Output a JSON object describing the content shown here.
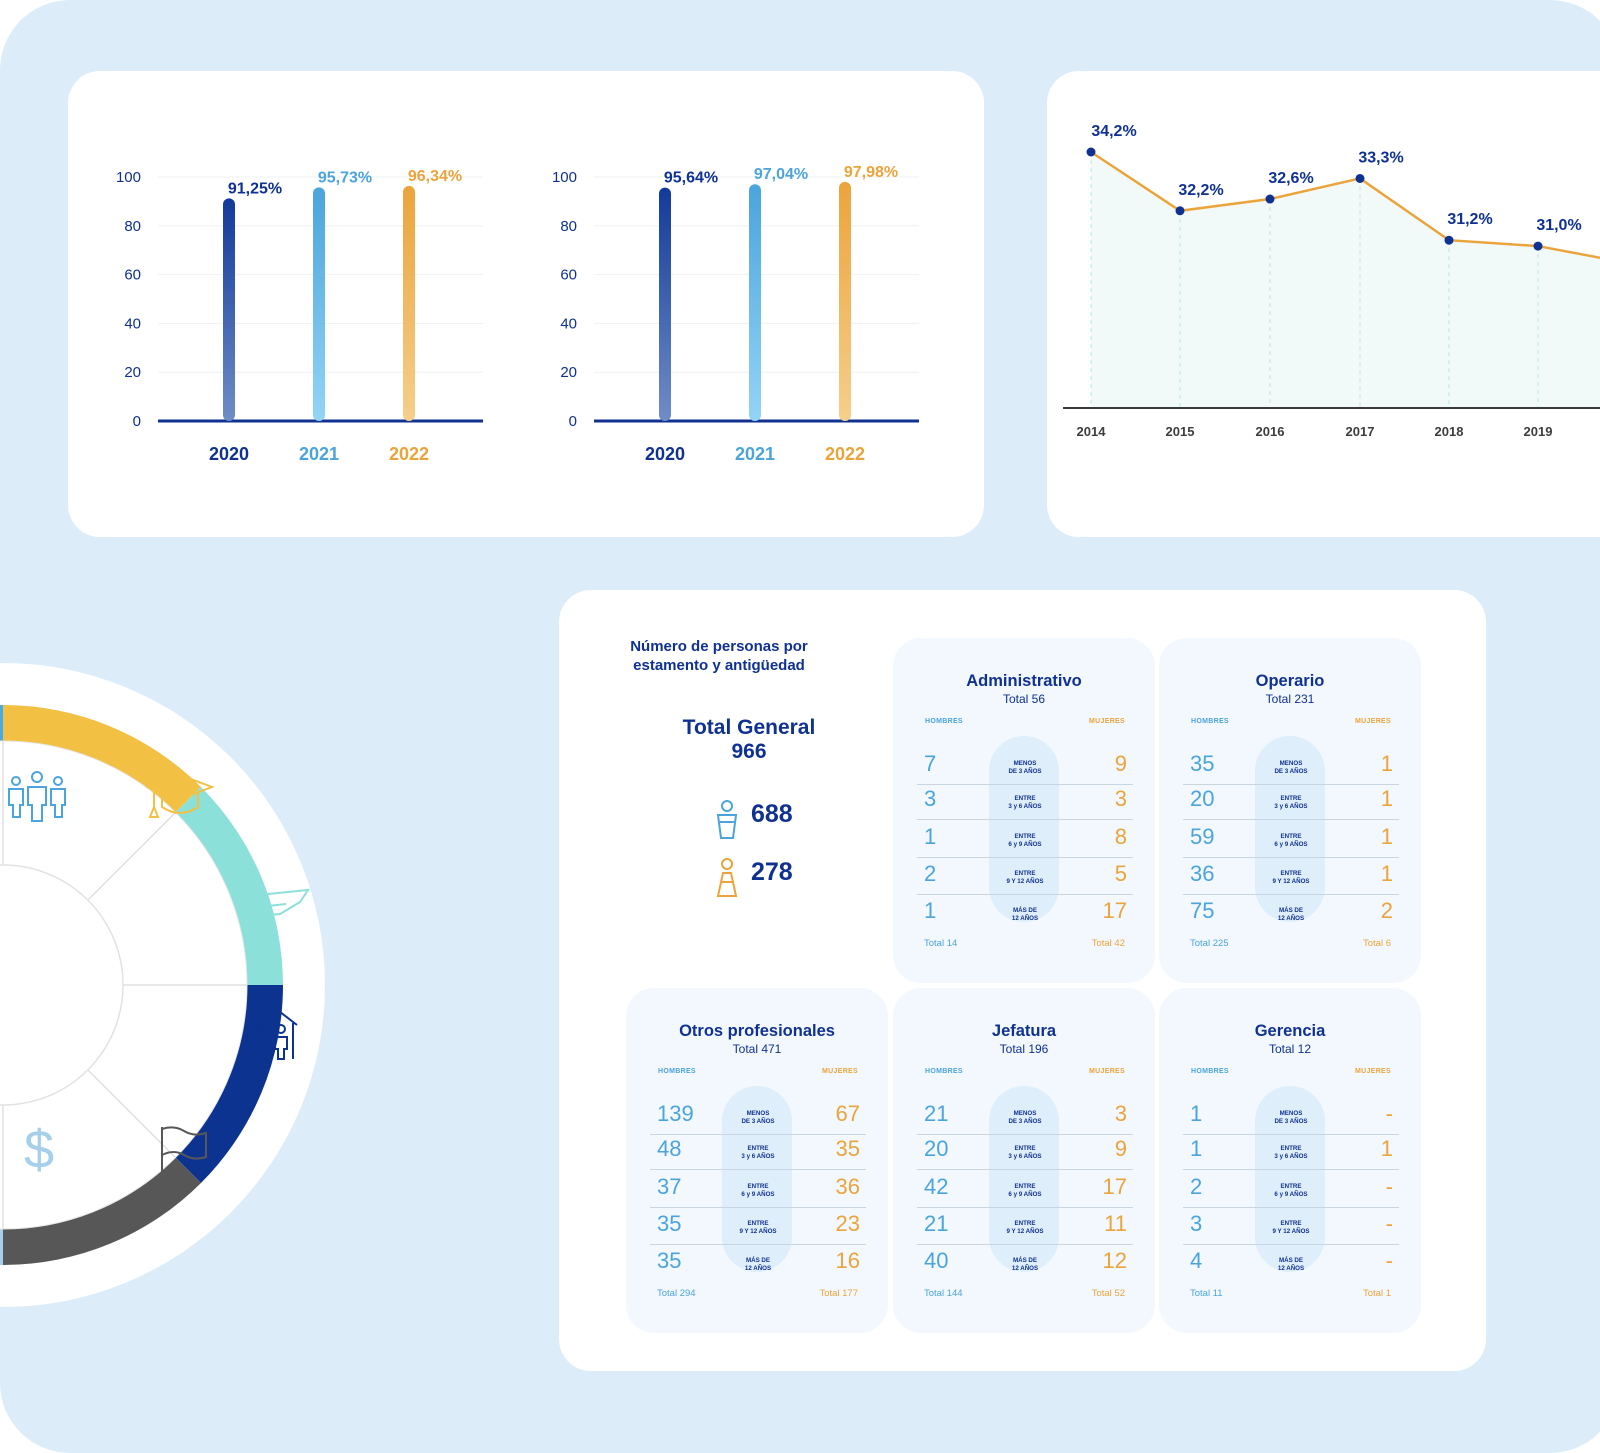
{
  "colors": {
    "dark_blue": "#0f3191",
    "light_blue": "#4ba4dc",
    "orange": "#eba43c",
    "teal": "#8be0da",
    "gray_dark": "#575757",
    "pale_blue": "#a6cfeb"
  },
  "chart_data": [
    {
      "type": "bar",
      "categories": [
        "2020",
        "2021",
        "2022"
      ],
      "values": [
        91.25,
        95.73,
        96.34
      ],
      "data_labels": [
        "91,25%",
        "95,73%",
        "96,34%"
      ],
      "yticks": [
        "100",
        "80",
        "60",
        "40",
        "20",
        "0"
      ],
      "ylim": [
        0,
        100
      ],
      "grid": true
    },
    {
      "type": "bar",
      "categories": [
        "2020",
        "2021",
        "2022"
      ],
      "values": [
        95.64,
        97.04,
        97.98
      ],
      "data_labels": [
        "95,64%",
        "97,04%",
        "97,98%"
      ],
      "yticks": [
        "100",
        "80",
        "60",
        "40",
        "20",
        "0"
      ],
      "ylim": [
        0,
        100
      ],
      "grid": true
    },
    {
      "type": "line",
      "categories": [
        "2014",
        "2015",
        "2016",
        "2017",
        "2018",
        "2019"
      ],
      "values": [
        34.2,
        32.2,
        32.6,
        33.3,
        31.2,
        31.0
      ],
      "data_labels": [
        "34,2%",
        "32,2%",
        "32,6%",
        "33,3%",
        "31,2%",
        "31,0%"
      ]
    }
  ],
  "headcount": {
    "title_line1": "Número de personas por",
    "title_line2": "estamento y antigüedad",
    "total_label": "Total General",
    "total_value": "966",
    "men_total": "688",
    "women_total": "278",
    "header_men": "HOMBRES",
    "header_women": "MUJERES",
    "seniority": [
      {
        "l1": "MENOS",
        "l2": "DE 3 AÑOS"
      },
      {
        "l1": "ENTRE",
        "l2": "3 y 6 AÑOS"
      },
      {
        "l1": "ENTRE",
        "l2": "6 y 9 AÑOS"
      },
      {
        "l1": "ENTRE",
        "l2": "9 Y 12 AÑOS"
      },
      {
        "l1": "MÁS DE",
        "l2": "12 AÑOS"
      }
    ],
    "groups": [
      {
        "name": "Administrativo",
        "total": "Total 56",
        "men": [
          "7",
          "3",
          "1",
          "2",
          "1"
        ],
        "women": [
          "9",
          "3",
          "8",
          "5",
          "17"
        ],
        "men_total": "Total 14",
        "women_total": "Total 42"
      },
      {
        "name": "Operario",
        "total": "Total 231",
        "men": [
          "35",
          "20",
          "59",
          "36",
          "75"
        ],
        "women": [
          "1",
          "1",
          "1",
          "1",
          "2"
        ],
        "men_total": "Total 225",
        "women_total": "Total 6"
      },
      {
        "name": "Otros profesionales",
        "total": "Total 471",
        "men": [
          "139",
          "48",
          "37",
          "35",
          "35"
        ],
        "women": [
          "67",
          "35",
          "36",
          "23",
          "16"
        ],
        "men_total": "Total 294",
        "women_total": "Total 177"
      },
      {
        "name": "Jefatura",
        "total": "Total 196",
        "men": [
          "21",
          "20",
          "42",
          "21",
          "40"
        ],
        "women": [
          "3",
          "9",
          "17",
          "11",
          "12"
        ],
        "men_total": "Total 144",
        "women_total": "Total 52"
      },
      {
        "name": "Gerencia",
        "total": "Total 12",
        "men": [
          "1",
          "1",
          "2",
          "3",
          "4"
        ],
        "women": [
          "-",
          "1",
          "-",
          "-",
          "-"
        ],
        "men_total": "Total 11",
        "women_total": "Total 1"
      }
    ]
  },
  "wheel": {
    "icons": [
      "people-group-icon",
      "graduation-cap-icon",
      "hand-icon",
      "family-house-icon",
      "flag-icon",
      "dollar-icon"
    ]
  }
}
